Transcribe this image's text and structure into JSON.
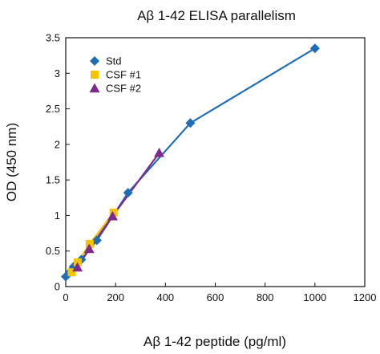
{
  "chart_data": {
    "type": "line",
    "title": "Aβ 1-42 ELISA parallelism",
    "xlabel": "Aβ 1-42 peptide (pg/ml)",
    "ylabel": "OD (450 nm)",
    "xlim": [
      0,
      1200
    ],
    "ylim": [
      0,
      3.5
    ],
    "x_ticks": [
      "0",
      "200",
      "400",
      "600",
      "800",
      "1000",
      "1200"
    ],
    "y_ticks": [
      "0",
      "0.5",
      "1",
      "1.5",
      "2",
      "2.5",
      "3",
      "3.5"
    ],
    "grid": false,
    "legend_position": "top-left",
    "series": [
      {
        "name": "Std",
        "marker": "diamond",
        "color": "#1f6db5",
        "x": [
          0,
          15.6,
          31.25,
          62.5,
          125,
          250,
          500,
          1000
        ],
        "y": [
          0.14,
          0.2,
          0.28,
          0.38,
          0.65,
          1.32,
          2.3,
          3.35
        ]
      },
      {
        "name": "CSF #1",
        "marker": "square",
        "color": "#f5c400",
        "x": [
          24,
          48,
          96,
          192
        ],
        "y": [
          0.2,
          0.34,
          0.6,
          1.04
        ]
      },
      {
        "name": "CSF #2",
        "marker": "triangle",
        "color": "#7e2a8c",
        "x": [
          47,
          94,
          188,
          375
        ],
        "y": [
          0.27,
          0.53,
          0.99,
          1.88
        ]
      }
    ]
  }
}
